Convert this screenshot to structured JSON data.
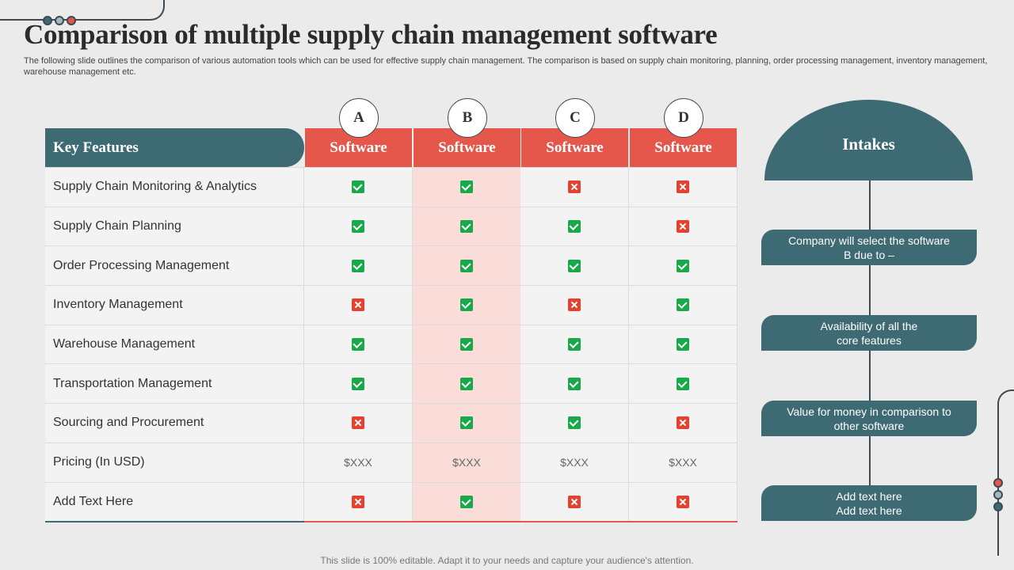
{
  "title": "Comparison of multiple  supply chain management software",
  "subtitle": "The following slide outlines the comparison of various automation tools which can be used for effective supply chain management. The comparison is based on supply chain monitoring, planning, order processing management, inventory management, warehouse management etc.",
  "table": {
    "key_header": "Key Features",
    "columns": [
      {
        "letter": "A",
        "label": "Software"
      },
      {
        "letter": "B",
        "label": "Software"
      },
      {
        "letter": "C",
        "label": "Software"
      },
      {
        "letter": "D",
        "label": "Software"
      }
    ],
    "rows": [
      {
        "label": "Supply Chain Monitoring & Analytics",
        "values": [
          "check",
          "check",
          "cross",
          "cross"
        ]
      },
      {
        "label": "Supply Chain Planning",
        "values": [
          "check",
          "check",
          "check",
          "cross"
        ]
      },
      {
        "label": "Order Processing Management",
        "values": [
          "check",
          "check",
          "check",
          "check"
        ]
      },
      {
        "label": "Inventory  Management",
        "values": [
          "cross",
          "check",
          "cross",
          "check"
        ]
      },
      {
        "label": "Warehouse Management",
        "values": [
          "check",
          "check",
          "check",
          "check"
        ]
      },
      {
        "label": "Transportation  Management",
        "values": [
          "check",
          "check",
          "check",
          "check"
        ]
      },
      {
        "label": "Sourcing and Procurement",
        "values": [
          "cross",
          "check",
          "check",
          "cross"
        ]
      },
      {
        "label": "Pricing (In  USD)",
        "values": [
          "$XXX",
          "$XXX",
          "$XXX",
          "$XXX"
        ]
      },
      {
        "label": "Add Text Here",
        "values": [
          "cross",
          "check",
          "cross",
          "cross"
        ]
      }
    ],
    "highlight_column": "B"
  },
  "intakes": {
    "title": "Intakes",
    "items": [
      "Company will select the software\nB due to –",
      "Availability  of all the\ncore features",
      "Value for money in comparison to\nother software",
      "Add text here\nAdd text here"
    ]
  },
  "footer": "This slide is 100% editable. Adapt it to your needs and capture your audience's attention.",
  "colors": {
    "teal": "#3e6b73",
    "coral": "#e4574a",
    "highlight": "#fadcd8",
    "check": "#19a84a",
    "cross": "#e4422f"
  }
}
